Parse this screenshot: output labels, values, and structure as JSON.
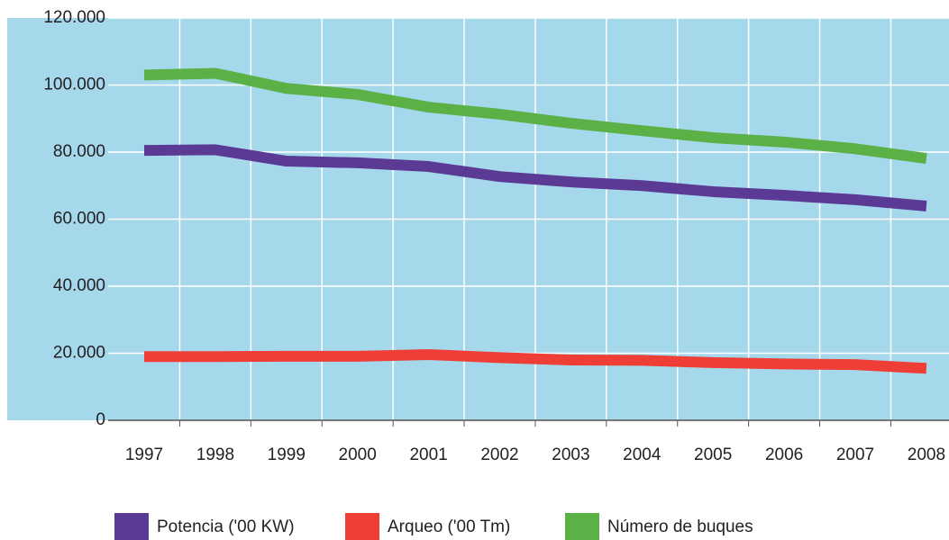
{
  "chart_data": {
    "type": "line",
    "categories": [
      "1997",
      "1998",
      "1999",
      "2000",
      "2001",
      "2002",
      "2003",
      "2004",
      "2005",
      "2006",
      "2007",
      "2008"
    ],
    "series": [
      {
        "name": "Potencia ('00 KW)",
        "color": "#5b3a96",
        "values": [
          80500,
          80700,
          77300,
          76800,
          75700,
          72700,
          71100,
          70000,
          68200,
          67100,
          65800,
          63900
        ]
      },
      {
        "name": "Arqueo ('00 Tm)",
        "color": "#ef3e36",
        "values": [
          19000,
          19000,
          19100,
          19100,
          19600,
          18700,
          18000,
          17900,
          17200,
          16800,
          16600,
          15500
        ]
      },
      {
        "name": "Número de buques",
        "color": "#5bb146",
        "values": [
          103000,
          103500,
          99000,
          97200,
          93400,
          91300,
          88600,
          86400,
          84300,
          83000,
          81000,
          78100
        ]
      }
    ],
    "ylim": [
      0,
      120000
    ],
    "yticks": [
      0,
      {
        "value": 20000,
        "label": "20.000"
      },
      {
        "value": 40000,
        "label": "40.000"
      },
      {
        "value": 60000,
        "label": "60.000"
      },
      {
        "value": 80000,
        "label": "80.000"
      },
      {
        "value": 100000,
        "label": "100.000"
      },
      {
        "value": 120000,
        "label": "120.000"
      }
    ],
    "grid": true,
    "background": "#a6d8ec",
    "legend": "bottom"
  }
}
